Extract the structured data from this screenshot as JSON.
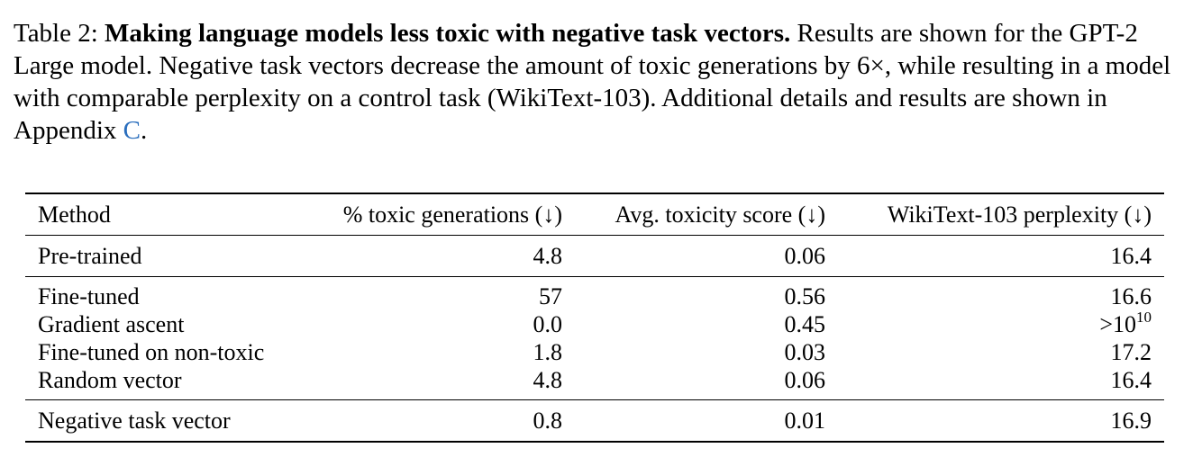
{
  "caption": {
    "label": "Table 2: ",
    "title": "Making language models less toxic with negative task vectors.",
    "text_part1": " Results are shown for the GPT-2 Large model. Negative task vectors decrease the amount of toxic generations by 6×, while resulting in a model with comparable perplexity on a control task (WikiText-103). Additional details and results are shown in Appendix ",
    "appendix_ref": "C",
    "text_part2": "."
  },
  "table": {
    "headers": {
      "method": "Method",
      "toxic_generations": "% toxic generations (↓)",
      "toxicity_score": "Avg. toxicity score (↓)",
      "perplexity": "WikiText-103 perplexity (↓)"
    },
    "rows": [
      {
        "method": "Pre-trained",
        "toxic": "4.8",
        "score": "0.06",
        "ppl": "16.4"
      },
      {
        "method": "Fine-tuned",
        "toxic": "57",
        "score": "0.56",
        "ppl": "16.6"
      },
      {
        "method": "Gradient ascent",
        "toxic": "0.0",
        "score": "0.45",
        "ppl_base": ">10",
        "ppl_exp": "10"
      },
      {
        "method": "Fine-tuned on non-toxic",
        "toxic": "1.8",
        "score": "0.03",
        "ppl": "17.2"
      },
      {
        "method": "Random vector",
        "toxic": "4.8",
        "score": "0.06",
        "ppl": "16.4"
      },
      {
        "method": "Negative task vector",
        "toxic": "0.8",
        "score": "0.01",
        "ppl": "16.9"
      }
    ]
  }
}
